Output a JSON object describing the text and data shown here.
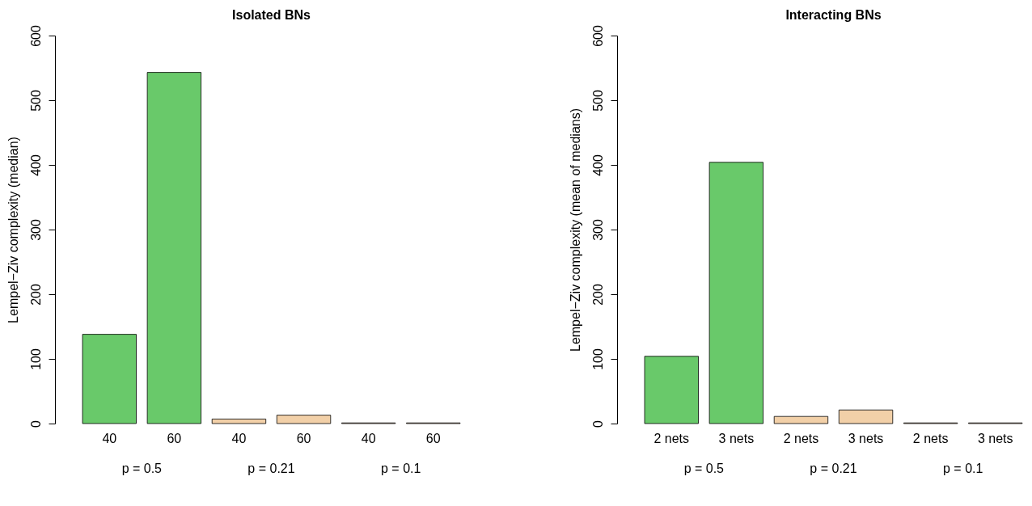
{
  "chart_data": [
    {
      "type": "bar",
      "title": "Isolated BNs",
      "ylabel": "Lempel−Ziv complexity (median)",
      "categories": [
        "40",
        "60",
        "40",
        "60",
        "40",
        "60"
      ],
      "values": [
        138,
        543,
        7,
        13,
        1,
        1
      ],
      "colors": [
        "#69c96a",
        "#69c96a",
        "#f2d0a8",
        "#f2d0a8",
        "#f2d0a8",
        "#f2d0a8"
      ],
      "ylim": [
        0,
        600
      ],
      "yticks": [
        0,
        100,
        200,
        300,
        400,
        500,
        600
      ],
      "annotations": [
        "p = 0.5",
        "p = 0.21",
        "p = 0.1"
      ]
    },
    {
      "type": "bar",
      "title": "Interacting BNs",
      "ylabel": "Lempel−Ziv complexity (mean of medians)",
      "categories": [
        "2 nets",
        "3 nets",
        "2 nets",
        "3 nets",
        "2 nets",
        "3 nets"
      ],
      "values": [
        104,
        404,
        11,
        21,
        1,
        1
      ],
      "colors": [
        "#69c96a",
        "#69c96a",
        "#f2d0a8",
        "#f2d0a8",
        "#f2d0a8",
        "#f2d0a8"
      ],
      "ylim": [
        0,
        600
      ],
      "yticks": [
        0,
        100,
        200,
        300,
        400,
        500,
        600
      ],
      "annotations": [
        "p = 0.5",
        "p = 0.21",
        "p = 0.1"
      ]
    }
  ]
}
